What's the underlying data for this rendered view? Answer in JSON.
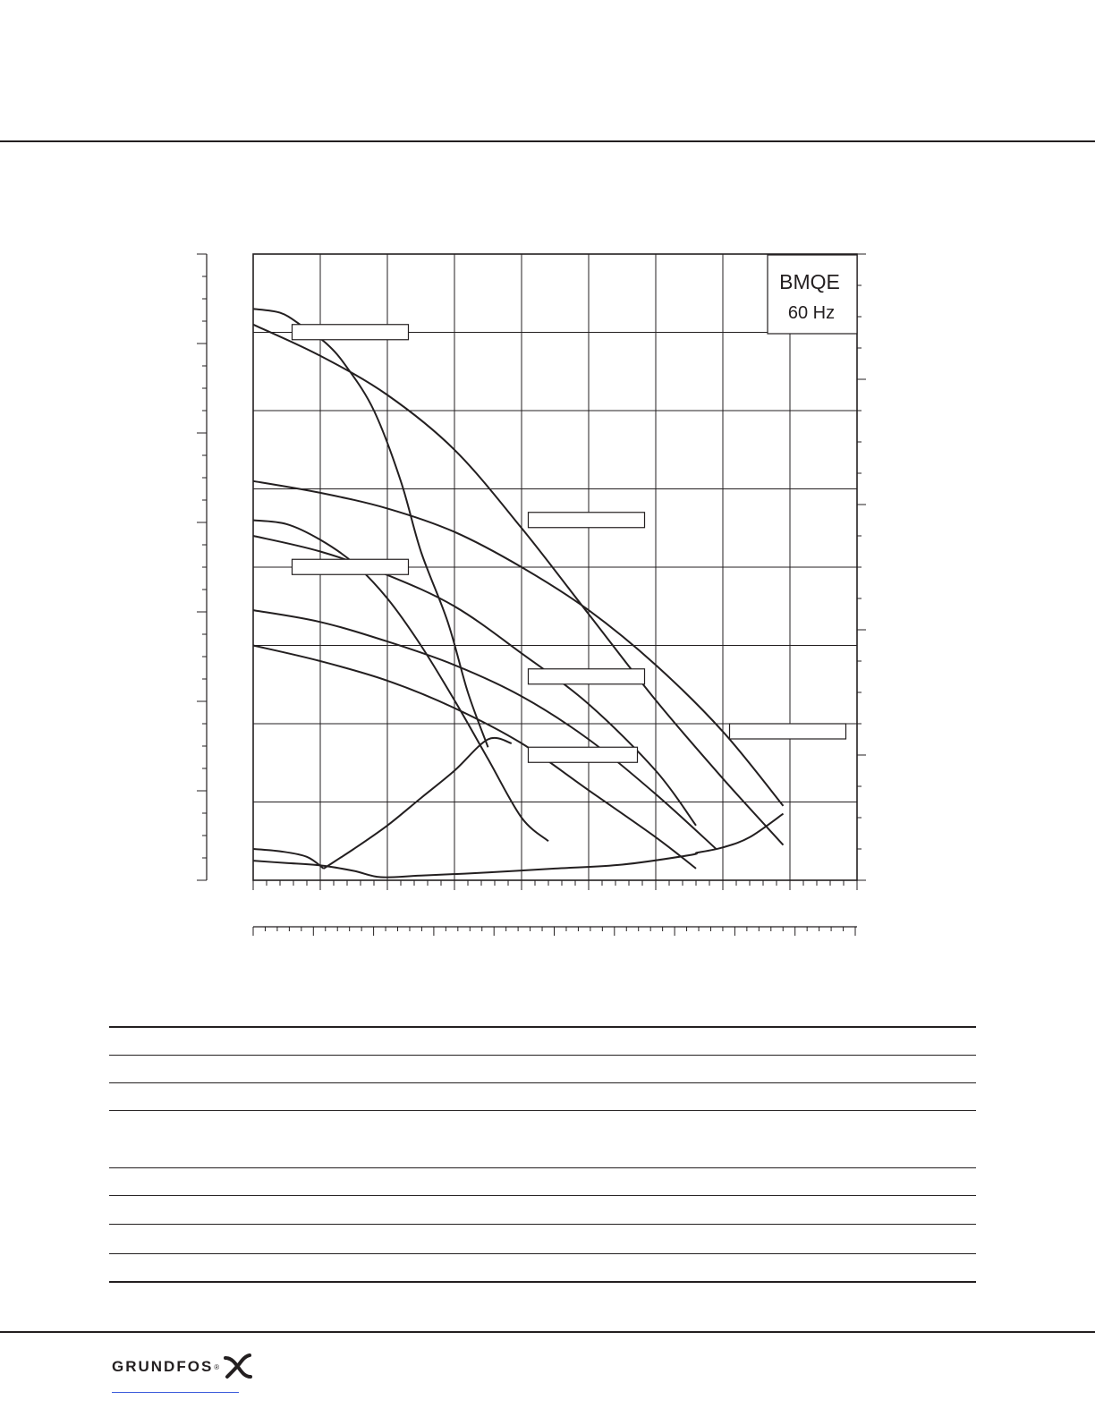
{
  "legend_box": {
    "line1": "BMQE",
    "line2": "60 Hz"
  },
  "logo": {
    "text": "GRUNDFOS",
    "mark": "grundfos-x-mark",
    "color": "#231f20"
  },
  "colors": {
    "ink": "#231f20",
    "background": "#ffffff"
  },
  "chart_data": {
    "type": "line",
    "title": "",
    "xlabel": "",
    "ylabel": "",
    "xlim": [
      0,
      9
    ],
    "ylim": [
      0,
      8
    ],
    "grid": true,
    "legend": {
      "text": [
        "BMQE",
        "60 Hz"
      ],
      "placement": "top-right"
    },
    "curve_label_boxes": 6,
    "series": [
      {
        "x": [
          0,
          0.4,
          0.7,
          1.1,
          1.4,
          1.8,
          2.2,
          2.5,
          2.9,
          3.2,
          3.5
        ],
        "y": [
          7.3,
          7.25,
          7.1,
          6.85,
          6.55,
          6.0,
          5.1,
          4.2,
          3.3,
          2.4,
          1.7
        ]
      },
      {
        "x": [
          0,
          1,
          2,
          3,
          4,
          5,
          6,
          7,
          7.9
        ],
        "y": [
          7.1,
          6.7,
          6.2,
          5.5,
          4.5,
          3.4,
          2.3,
          1.3,
          0.45
        ]
      },
      {
        "x": [
          0,
          1,
          2,
          3,
          4,
          5,
          6,
          7,
          7.9
        ],
        "y": [
          5.1,
          4.95,
          4.75,
          4.45,
          4.0,
          3.45,
          2.75,
          1.9,
          0.95
        ]
      },
      {
        "x": [
          0,
          0.5,
          1,
          1.5,
          2,
          2.5,
          3,
          3.5,
          4,
          4.4
        ],
        "y": [
          4.6,
          4.55,
          4.35,
          4.05,
          3.6,
          3.0,
          2.3,
          1.55,
          0.8,
          0.5
        ]
      },
      {
        "x": [
          0,
          1,
          2,
          3,
          4,
          5,
          6,
          6.6
        ],
        "y": [
          4.4,
          4.2,
          3.9,
          3.5,
          2.9,
          2.25,
          1.4,
          0.7
        ]
      },
      {
        "x": [
          0,
          1,
          2,
          3,
          4,
          5,
          6,
          6.9
        ],
        "y": [
          3.45,
          3.3,
          3.05,
          2.75,
          2.35,
          1.8,
          1.1,
          0.4
        ]
      },
      {
        "x": [
          0,
          1,
          2,
          3,
          4,
          5,
          6,
          6.6
        ],
        "y": [
          3.0,
          2.8,
          2.55,
          2.2,
          1.75,
          1.15,
          0.55,
          0.15
        ]
      },
      {
        "x": [
          1.05,
          1.5,
          2,
          2.5,
          3,
          3.5,
          3.85
        ],
        "y": [
          0.15,
          0.4,
          0.7,
          1.05,
          1.4,
          1.8,
          1.75
        ]
      },
      {
        "x": [
          0,
          0.5,
          1,
          1.5,
          1.9,
          2.5,
          3.5,
          4.5,
          5.5,
          6.5,
          6.6
        ],
        "y": [
          0.25,
          0.22,
          0.19,
          0.12,
          0.04,
          0.06,
          0.1,
          0.15,
          0.2,
          0.32,
          0.35
        ]
      },
      {
        "x": [
          6.6,
          7,
          7.4,
          7.9
        ],
        "y": [
          0.35,
          0.42,
          0.55,
          0.85
        ]
      },
      {
        "x": [
          0,
          0.4,
          0.8,
          1.05
        ],
        "y": [
          0.4,
          0.37,
          0.3,
          0.15
        ]
      }
    ]
  }
}
